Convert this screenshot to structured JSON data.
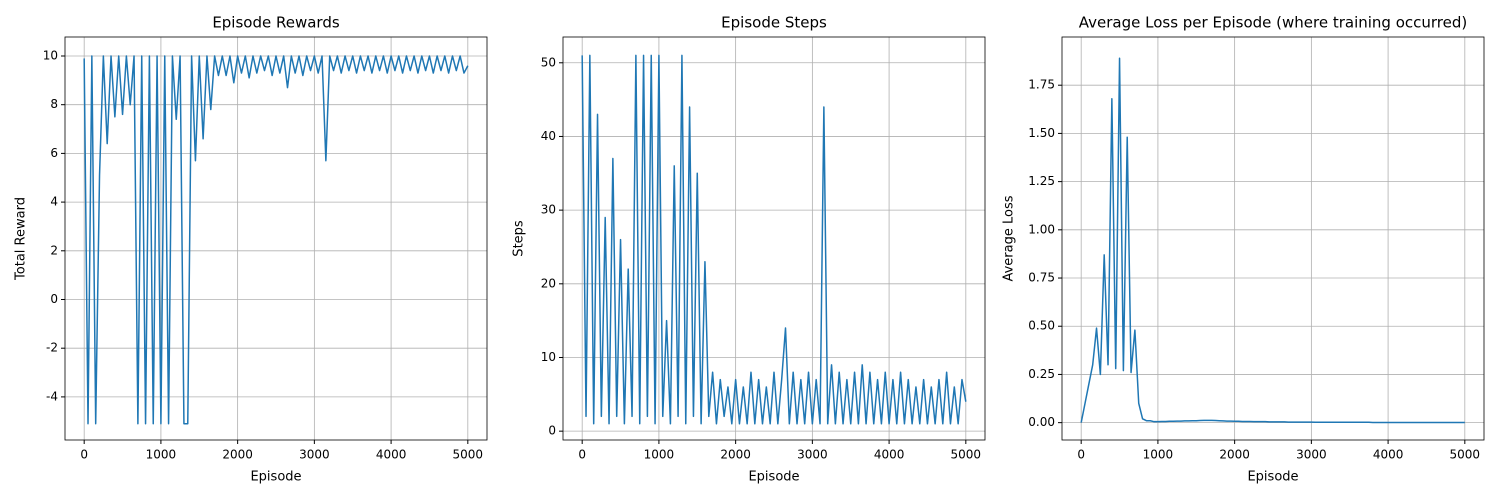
{
  "chart_data": [
    {
      "type": "line",
      "title": "Episode Rewards",
      "xlabel": "Episode",
      "ylabel": "Total Reward",
      "color": "#1f77b4",
      "grid": true,
      "xlim": [
        -250,
        5250
      ],
      "ylim": [
        -5.77,
        10.78
      ],
      "xticks": [
        0,
        1000,
        2000,
        3000,
        4000,
        5000
      ],
      "yticks": [
        -4,
        -2,
        0,
        2,
        4,
        6,
        8,
        10
      ],
      "x": [
        0,
        50,
        100,
        150,
        200,
        250,
        300,
        350,
        400,
        450,
        500,
        550,
        600,
        650,
        700,
        750,
        800,
        850,
        900,
        950,
        1000,
        1050,
        1100,
        1150,
        1200,
        1250,
        1300,
        1350,
        1400,
        1450,
        1500,
        1550,
        1600,
        1650,
        1700,
        1750,
        1800,
        1850,
        1900,
        1950,
        2000,
        2050,
        2100,
        2150,
        2200,
        2250,
        2300,
        2350,
        2400,
        2450,
        2500,
        2550,
        2600,
        2650,
        2700,
        2750,
        2800,
        2850,
        2900,
        2950,
        3000,
        3050,
        3100,
        3150,
        3200,
        3250,
        3300,
        3350,
        3400,
        3450,
        3500,
        3550,
        3600,
        3650,
        3700,
        3750,
        3800,
        3850,
        3900,
        3950,
        4000,
        4050,
        4100,
        4150,
        4200,
        4250,
        4300,
        4350,
        4400,
        4450,
        4500,
        4550,
        4600,
        4650,
        4700,
        4750,
        4800,
        4850,
        4900,
        4950,
        5000
      ],
      "values": [
        9.9,
        -5.1,
        10,
        -5.1,
        5.1,
        10,
        6.4,
        10,
        7.5,
        10,
        7.6,
        10,
        8.0,
        10,
        -5.1,
        10,
        -5.1,
        10,
        -5.1,
        10,
        -5.1,
        10,
        -5.1,
        10,
        7.4,
        10,
        -5.1,
        -5.1,
        10,
        5.7,
        10,
        6.6,
        10,
        7.8,
        10,
        9.2,
        10,
        9.2,
        10,
        8.9,
        10,
        9.3,
        10,
        9.1,
        10,
        9.3,
        10,
        9.4,
        10,
        9.2,
        10,
        9.3,
        10,
        8.7,
        10,
        9.3,
        10,
        9.2,
        10,
        9.4,
        10,
        9.3,
        10,
        5.7,
        10,
        9.4,
        10,
        9.3,
        10,
        9.4,
        10,
        9.3,
        10,
        9.4,
        10,
        9.3,
        10,
        9.4,
        10,
        9.3,
        10,
        9.4,
        10,
        9.3,
        10,
        9.4,
        10,
        9.3,
        10,
        9.4,
        10,
        9.3,
        10,
        9.4,
        10,
        9.3,
        10,
        9.4,
        10,
        9.3,
        9.6
      ]
    },
    {
      "type": "line",
      "title": "Episode Steps",
      "xlabel": "Episode",
      "ylabel": "Steps",
      "color": "#1f77b4",
      "grid": true,
      "xlim": [
        -250,
        5250
      ],
      "ylim": [
        -1.2,
        53.5
      ],
      "xticks": [
        0,
        1000,
        2000,
        3000,
        4000,
        5000
      ],
      "yticks": [
        0,
        10,
        20,
        30,
        40,
        50
      ],
      "x": [
        0,
        50,
        100,
        150,
        200,
        250,
        300,
        350,
        400,
        450,
        500,
        550,
        600,
        650,
        700,
        750,
        800,
        850,
        900,
        950,
        1000,
        1050,
        1100,
        1150,
        1200,
        1250,
        1300,
        1350,
        1400,
        1450,
        1500,
        1550,
        1600,
        1650,
        1700,
        1750,
        1800,
        1850,
        1900,
        1950,
        2000,
        2050,
        2100,
        2150,
        2200,
        2250,
        2300,
        2350,
        2400,
        2450,
        2500,
        2550,
        2600,
        2650,
        2700,
        2750,
        2800,
        2850,
        2900,
        2950,
        3000,
        3050,
        3100,
        3150,
        3200,
        3250,
        3300,
        3350,
        3400,
        3450,
        3500,
        3550,
        3600,
        3650,
        3700,
        3750,
        3800,
        3850,
        3900,
        3950,
        4000,
        4050,
        4100,
        4150,
        4200,
        4250,
        4300,
        4350,
        4400,
        4450,
        4500,
        4550,
        4600,
        4650,
        4700,
        4750,
        4800,
        4850,
        4900,
        4950,
        5000
      ],
      "values": [
        51,
        2,
        51,
        1,
        43,
        2,
        29,
        1,
        37,
        2,
        26,
        1,
        22,
        2,
        51,
        1,
        51,
        2,
        51,
        1,
        51,
        2,
        15,
        1,
        36,
        2,
        51,
        1,
        44,
        2,
        35,
        1,
        23,
        2,
        8,
        1,
        7,
        2,
        6,
        1,
        7,
        1,
        6,
        1,
        8,
        1,
        7,
        1,
        6,
        1,
        8,
        1,
        7,
        14,
        1,
        8,
        1,
        7,
        1,
        8,
        1,
        7,
        1,
        44,
        1,
        9,
        1,
        8,
        1,
        7,
        1,
        8,
        1,
        9,
        1,
        8,
        1,
        7,
        1,
        8,
        1,
        7,
        1,
        8,
        1,
        7,
        1,
        6,
        1,
        7,
        1,
        6,
        1,
        7,
        1,
        8,
        1,
        6,
        1,
        7,
        4
      ]
    },
    {
      "type": "line",
      "title": "Average Loss per Episode (where training occurred)",
      "xlabel": "Episode",
      "ylabel": "Average Loss",
      "color": "#1f77b4",
      "grid": true,
      "xlim": [
        -250,
        5250
      ],
      "ylim": [
        -0.09,
        2.0
      ],
      "xticks": [
        0,
        1000,
        2000,
        3000,
        4000,
        5000
      ],
      "yticks": [
        {
          "value": 0,
          "label": "0.00"
        },
        0.25,
        {
          "value": 0.5,
          "label": "0.50"
        },
        0.75,
        {
          "value": 1,
          "label": "1.00"
        },
        1.25,
        {
          "value": 1.5,
          "label": "1.50"
        },
        1.75
      ],
      "x": [
        0,
        50,
        100,
        150,
        200,
        250,
        300,
        350,
        400,
        450,
        500,
        550,
        600,
        650,
        700,
        750,
        800,
        850,
        900,
        950,
        1000,
        1050,
        1100,
        1150,
        1200,
        1250,
        1300,
        1350,
        1400,
        1450,
        1500,
        1550,
        1600,
        1650,
        1700,
        1750,
        1800,
        1850,
        1900,
        1950,
        2000,
        2050,
        2100,
        2150,
        2200,
        2250,
        2300,
        2350,
        2400,
        2450,
        2500,
        2550,
        2600,
        2650,
        2700,
        2750,
        2800,
        2850,
        2900,
        2950,
        3000,
        3050,
        3100,
        3150,
        3200,
        3250,
        3300,
        3350,
        3400,
        3450,
        3500,
        3550,
        3600,
        3650,
        3700,
        3750,
        3800,
        3850,
        3900,
        3950,
        4000,
        4050,
        4100,
        4150,
        4200,
        4250,
        4300,
        4350,
        4400,
        4450,
        4500,
        4550,
        4600,
        4650,
        4700,
        4750,
        4800,
        4850,
        4900,
        4950,
        5000
      ],
      "values": [
        0,
        0.1,
        0.2,
        0.3,
        0.49,
        0.25,
        0.87,
        0.3,
        1.68,
        0.28,
        1.89,
        0.27,
        1.48,
        0.26,
        0.48,
        0.1,
        0.02,
        0.01,
        0.01,
        0.005,
        0.005,
        0.006,
        0.006,
        0.007,
        0.007,
        0.008,
        0.008,
        0.009,
        0.009,
        0.01,
        0.01,
        0.011,
        0.012,
        0.012,
        0.012,
        0.011,
        0.01,
        0.009,
        0.008,
        0.008,
        0.007,
        0.007,
        0.006,
        0.006,
        0.006,
        0.005,
        0.005,
        0.005,
        0.005,
        0.004,
        0.004,
        0.004,
        0.004,
        0.004,
        0.003,
        0.003,
        0.003,
        0.003,
        0.003,
        0.003,
        0.003,
        0.002,
        0.002,
        0.002,
        0.002,
        0.002,
        0.002,
        0.002,
        0.002,
        0.002,
        0.002,
        0.002,
        0.002,
        0.002,
        0.002,
        0.002,
        0.001,
        0.001,
        0.001,
        0.001,
        0.001,
        0.001,
        0.001,
        0.001,
        0.001,
        0.001,
        0.001,
        0.001,
        0.001,
        0.001,
        0.001,
        0.001,
        0.001,
        0.001,
        0.001,
        0.001,
        0.001,
        0.001,
        0.001,
        0.001,
        0.001
      ]
    }
  ]
}
